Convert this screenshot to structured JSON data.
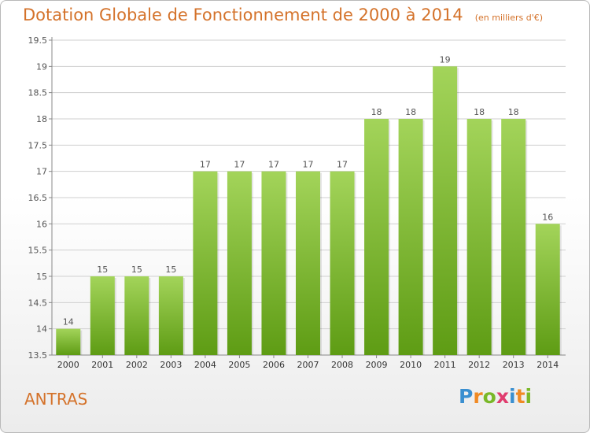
{
  "title": "Dotation Globale de Fonctionnement de 2000 à 2014",
  "unit": "(en milliers d'€)",
  "commune": "ANTRAS",
  "brand": {
    "letters": [
      "P",
      "r",
      "o",
      "x",
      "i",
      "t",
      "i"
    ],
    "colors": [
      "#3a8fd0",
      "#f08a24",
      "#7ab828",
      "#e03c6e",
      "#3a8fd0",
      "#f08a24",
      "#7ab828"
    ]
  },
  "colors": {
    "bar_light": "#a3d45a",
    "bar_dark": "#5e9c14",
    "title": "#d4722a",
    "grid": "#cfcfcf"
  },
  "chart_data": {
    "type": "bar",
    "title": "Dotation Globale de Fonctionnement de 2000 à 2014",
    "subtitle": "(en milliers d'€)",
    "xlabel": "",
    "ylabel": "",
    "categories": [
      "2000",
      "2001",
      "2002",
      "2003",
      "2004",
      "2005",
      "2006",
      "2007",
      "2008",
      "2009",
      "2010",
      "2011",
      "2012",
      "2013",
      "2014"
    ],
    "values": [
      14,
      15,
      15,
      15,
      17,
      17,
      17,
      17,
      17,
      18,
      18,
      19,
      18,
      18,
      16
    ],
    "data_labels": [
      "14",
      "15",
      "15",
      "15",
      "17",
      "17",
      "17",
      "17",
      "17",
      "18",
      "18",
      "19",
      "18",
      "18",
      "16"
    ],
    "yticks": [
      "13.5",
      "14",
      "14.5",
      "15",
      "15.5",
      "16",
      "16.5",
      "17",
      "17.5",
      "18",
      "18.5",
      "19",
      "19.5"
    ],
    "ylim": [
      13.5,
      19.5
    ],
    "grid": true,
    "legend": "none"
  }
}
